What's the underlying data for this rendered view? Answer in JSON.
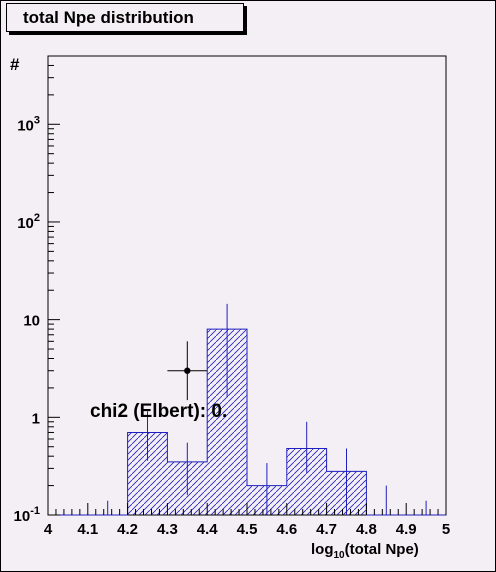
{
  "chart_data": {
    "type": "bar",
    "title": "total Npe distribution",
    "xlabel": "log10(total Npe)",
    "ylabel": "#",
    "xlim": [
      4.0,
      5.0
    ],
    "ylim": [
      0.1,
      5000
    ],
    "yscale": "log",
    "grid": false,
    "x_ticks": [
      "4",
      "4.1",
      "4.2",
      "4.3",
      "4.4",
      "4.5",
      "4.6",
      "4.7",
      "4.8",
      "4.9",
      "5"
    ],
    "y_ticks": [
      {
        "mant": "10",
        "exp": "-1",
        "value": 0.1
      },
      {
        "mant": "1",
        "exp": "",
        "value": 1
      },
      {
        "mant": "10",
        "exp": "",
        "value": 10
      },
      {
        "mant": "10",
        "exp": "2",
        "value": 100
      },
      {
        "mant": "10",
        "exp": "3",
        "value": 1000
      }
    ],
    "histogram": {
      "bin_edges": [
        4.0,
        4.1,
        4.2,
        4.3,
        4.4,
        4.5,
        4.6,
        4.7,
        4.8,
        4.9,
        5.0
      ],
      "values": [
        0.1,
        0.1,
        0.7,
        0.35,
        8.0,
        0.2,
        0.48,
        0.28,
        0.1,
        0.1
      ],
      "err_low": [
        0.1,
        0.1,
        0.36,
        0.16,
        1.6,
        0.1,
        0.27,
        0.1,
        0.1,
        0.1
      ],
      "err_high": [
        0.1,
        0.14,
        1.15,
        0.55,
        14.5,
        0.34,
        0.9,
        0.48,
        0.2,
        0.14
      ],
      "color": "#1f1fbf"
    },
    "data_points": [
      {
        "x": 4.35,
        "y": 3.0,
        "x_err": 0.05,
        "y_low": 1.5,
        "y_high": 6.0
      }
    ],
    "annotation": "chi2 (Elbert): 0."
  }
}
